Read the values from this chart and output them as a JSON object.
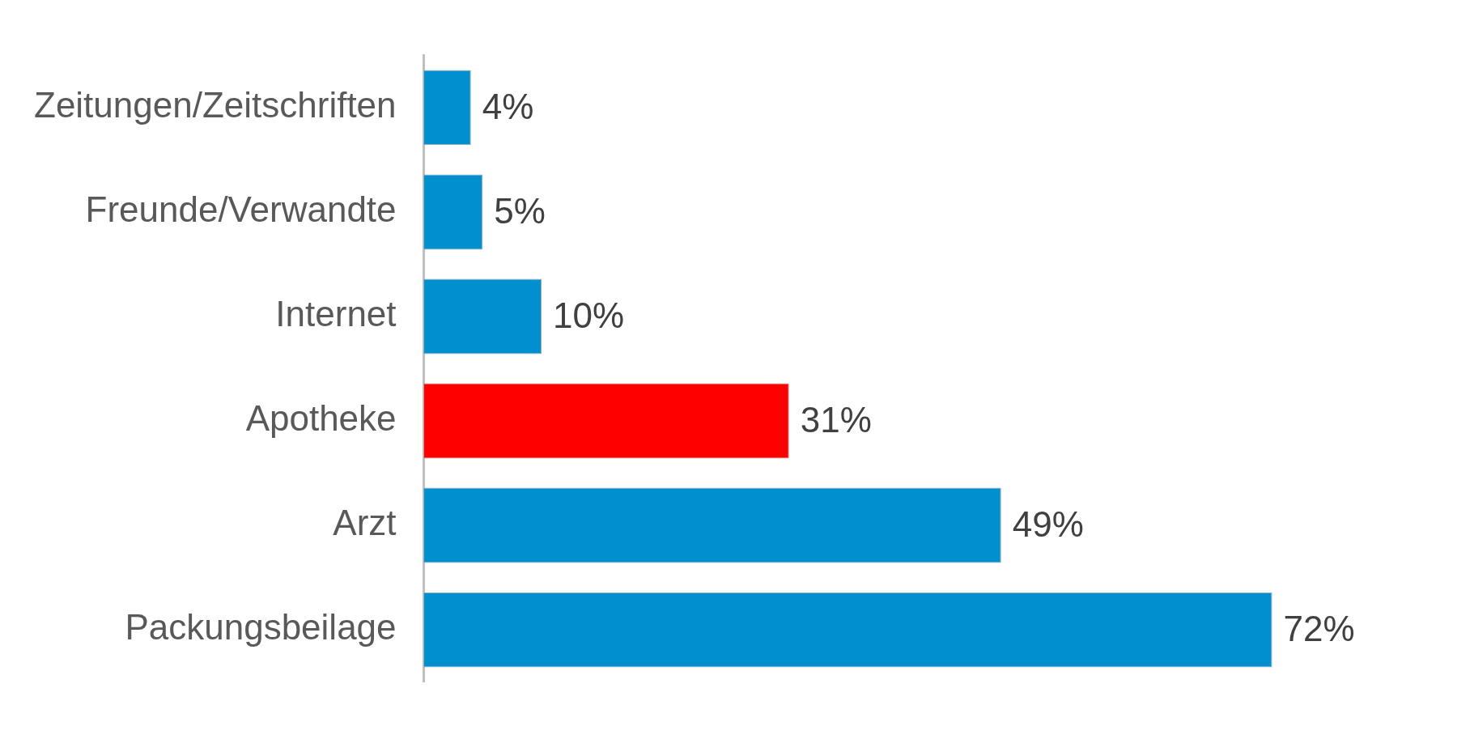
{
  "chart_data": {
    "type": "bar",
    "orientation": "horizontal",
    "categories": [
      "Zeitungen/Zeitschriften",
      "Freunde/Verwandte",
      "Internet",
      "Apotheke",
      "Arzt",
      "Packungsbeilage"
    ],
    "values": [
      4,
      5,
      10,
      31,
      49,
      72
    ],
    "value_labels": [
      "4%",
      "5%",
      "10%",
      "31%",
      "49%",
      "72%"
    ],
    "colors": [
      "#0090d0",
      "#0090d0",
      "#0090d0",
      "#ff0000",
      "#0090d0",
      "#0090d0"
    ],
    "tick_labels": "y",
    "legend": false
  }
}
